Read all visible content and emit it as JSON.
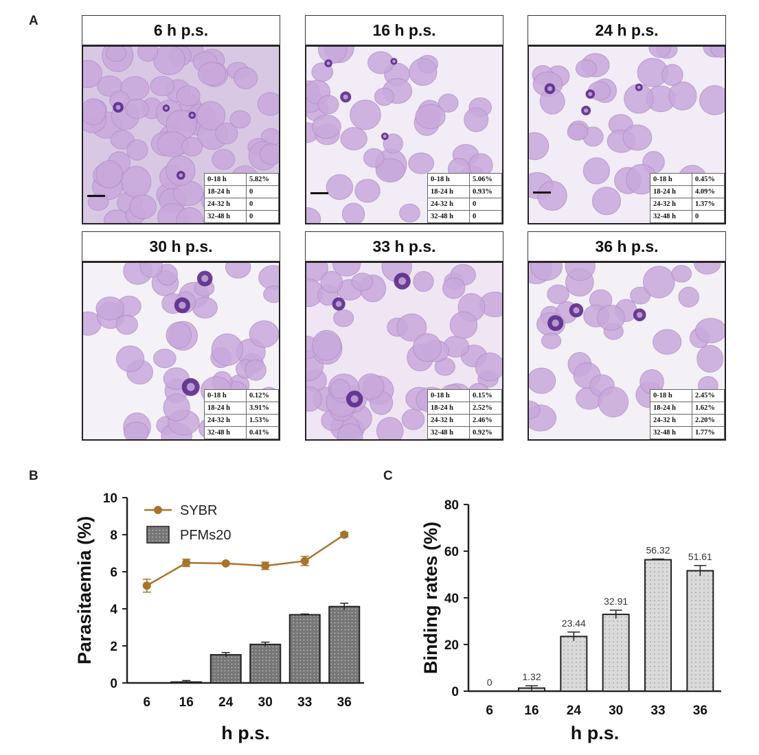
{
  "panel_a": {
    "label": "A",
    "panels": [
      {
        "title": "6 h p.s.",
        "rows": [
          [
            "0-18 h",
            "5.82%"
          ],
          [
            "18-24 h",
            "0"
          ],
          [
            "24-32 h",
            "0"
          ],
          [
            "32-48 h",
            "0"
          ]
        ]
      },
      {
        "title": "16 h p.s.",
        "rows": [
          [
            "0-18 h",
            "5.06%"
          ],
          [
            "18-24 h",
            "0.93%"
          ],
          [
            "24-32 h",
            "0"
          ],
          [
            "32-48 h",
            "0"
          ]
        ]
      },
      {
        "title": "24 h p.s.",
        "rows": [
          [
            "0-18 h",
            "0.45%"
          ],
          [
            "18-24 h",
            "4.09%"
          ],
          [
            "24-32 h",
            "1.37%"
          ],
          [
            "32-48 h",
            "0"
          ]
        ]
      },
      {
        "title": "30 h p.s.",
        "rows": [
          [
            "0-18 h",
            "0.12%"
          ],
          [
            "18-24 h",
            "3.91%"
          ],
          [
            "24-32 h",
            "1.53%"
          ],
          [
            "32-48 h",
            "0.41%"
          ]
        ]
      },
      {
        "title": "33 h p.s.",
        "rows": [
          [
            "0-18 h",
            "0.15%"
          ],
          [
            "18-24 h",
            "2.52%"
          ],
          [
            "24-32 h",
            "2.46%"
          ],
          [
            "32-48 h",
            "0.92%"
          ]
        ]
      },
      {
        "title": "36 h p.s.",
        "rows": [
          [
            "0-18 h",
            "2.45%"
          ],
          [
            "18-24 h",
            "1.62%"
          ],
          [
            "24-32 h",
            "2.20%"
          ],
          [
            "32-48 h",
            "1.77%"
          ]
        ]
      }
    ]
  },
  "colors": {
    "sybr": "#a8742a",
    "pfms20_fill": "#777777",
    "binding_fill": "#dadada",
    "cell": "#c9a9dc",
    "cell_edge": "#b08fc8",
    "parasite": "#5b2a8a",
    "bg_light": "#eee6f3"
  },
  "chart_data": [
    {
      "panel_label": "B",
      "type": "bar",
      "categories": [
        "6",
        "16",
        "24",
        "30",
        "33",
        "36"
      ],
      "series": [
        {
          "name": "SYBR",
          "type": "line",
          "values": [
            5.25,
            6.48,
            6.45,
            6.32,
            6.58,
            8.0
          ],
          "errors": [
            0.35,
            0.2,
            0.05,
            0.2,
            0.25,
            0.12
          ]
        },
        {
          "name": "PFMs20",
          "type": "bar",
          "values": [
            0.0,
            0.05,
            1.52,
            2.08,
            3.68,
            4.12
          ],
          "errors": [
            0.0,
            0.08,
            0.12,
            0.12,
            0.04,
            0.18
          ]
        }
      ],
      "xlabel": "h p.s.",
      "ylabel": "Parasitaemia (%)",
      "ylim": [
        0,
        10
      ],
      "yticks": [
        "0",
        "2",
        "4",
        "6",
        "8",
        "10"
      ],
      "legend": [
        "SYBR",
        "PFMs20"
      ]
    },
    {
      "panel_label": "C",
      "type": "bar",
      "categories": [
        "6",
        "16",
        "24",
        "30",
        "33",
        "36"
      ],
      "values": [
        0,
        1.32,
        23.44,
        32.91,
        56.32,
        51.61
      ],
      "errors": [
        0,
        1.0,
        1.9,
        1.8,
        0.3,
        2.2
      ],
      "data_labels": [
        "0",
        "1.32",
        "23.44",
        "32.91",
        "56.32",
        "51.61"
      ],
      "xlabel": "h p.s.",
      "ylabel": "Binding rates (%)",
      "ylim": [
        0,
        80
      ],
      "yticks": [
        "0",
        "20",
        "40",
        "60",
        "80"
      ]
    }
  ]
}
